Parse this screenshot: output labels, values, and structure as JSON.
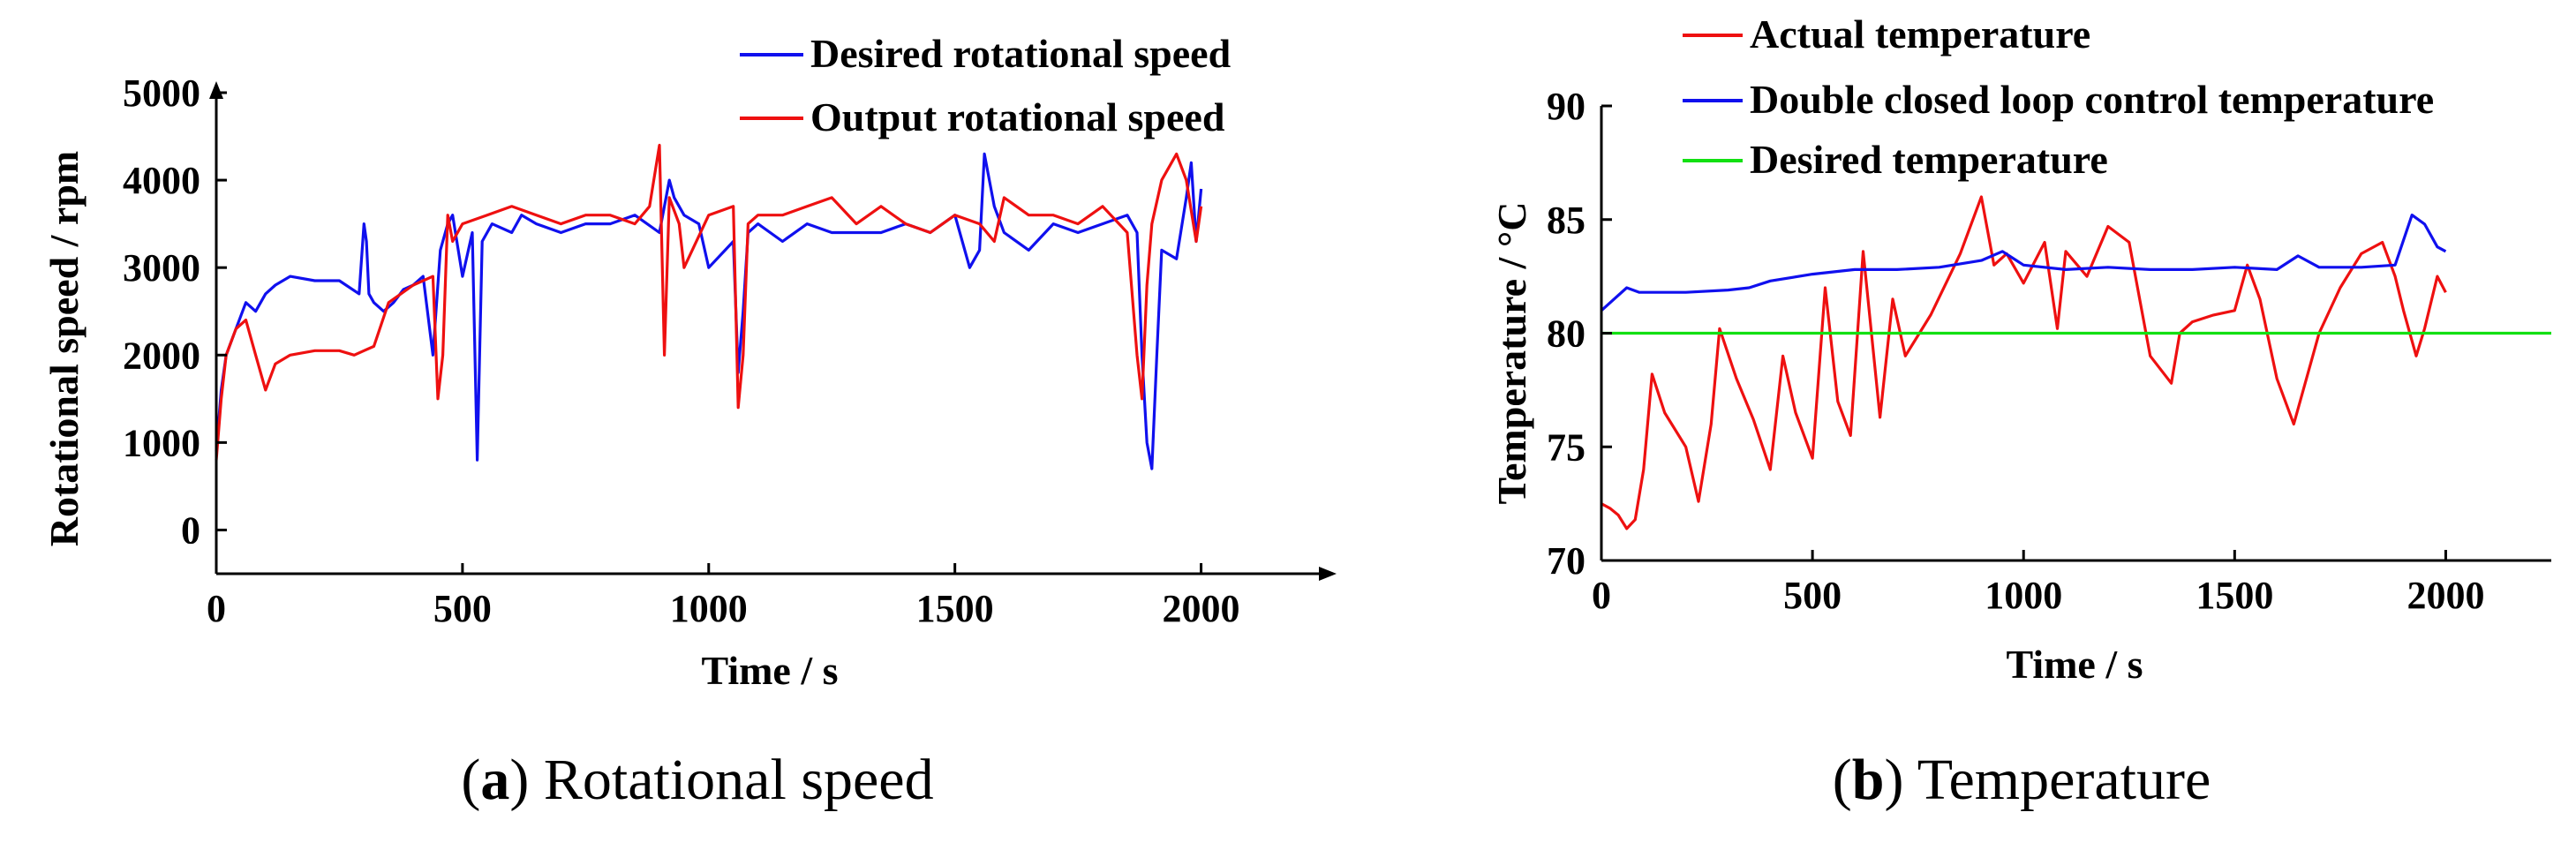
{
  "chart_data": [
    {
      "type": "line",
      "caption_letter": "a",
      "caption_text": "Rotational speed",
      "xlabel": "Time / s",
      "ylabel": "Rotational speed / rpm",
      "xlim": [
        0,
        2250
      ],
      "ylim": [
        -500,
        5000
      ],
      "xticks": [
        0,
        500,
        1000,
        1500,
        2000
      ],
      "yticks": [
        0,
        1000,
        2000,
        3000,
        4000,
        5000
      ],
      "legend_position": "top-right",
      "series": [
        {
          "name": "Desired rotational speed",
          "color": "#1010ee",
          "x": [
            0,
            10,
            20,
            40,
            60,
            80,
            100,
            120,
            150,
            200,
            250,
            290,
            300,
            305,
            310,
            320,
            340,
            360,
            380,
            400,
            420,
            440,
            450,
            455,
            460,
            470,
            480,
            500,
            520,
            530,
            540,
            560,
            600,
            620,
            650,
            700,
            750,
            800,
            850,
            900,
            920,
            930,
            950,
            980,
            1000,
            1050,
            1060,
            1070,
            1080,
            1100,
            1150,
            1200,
            1250,
            1300,
            1350,
            1400,
            1450,
            1500,
            1530,
            1550,
            1560,
            1580,
            1600,
            1650,
            1700,
            1750,
            1800,
            1850,
            1870,
            1880,
            1890,
            1900,
            1910,
            1920,
            1950,
            1970,
            1980,
            1990,
            2000
          ],
          "values": [
            900,
            1600,
            2000,
            2300,
            2600,
            2500,
            2700,
            2800,
            2900,
            2850,
            2850,
            2700,
            3500,
            3300,
            2700,
            2600,
            2500,
            2600,
            2750,
            2800,
            2900,
            2000,
            2800,
            3200,
            3300,
            3500,
            3600,
            2900,
            3400,
            800,
            3300,
            3500,
            3400,
            3600,
            3500,
            3400,
            3500,
            3500,
            3600,
            3400,
            4000,
            3800,
            3600,
            3500,
            3000,
            3300,
            1800,
            2500,
            3400,
            3500,
            3300,
            3500,
            3400,
            3400,
            3400,
            3500,
            3400,
            3600,
            3000,
            3200,
            4300,
            3700,
            3400,
            3200,
            3500,
            3400,
            3500,
            3600,
            3400,
            2000,
            1000,
            700,
            2000,
            3200,
            3100,
            3800,
            4200,
            3300,
            3900
          ]
        },
        {
          "name": "Output rotational speed",
          "color": "#ee1010",
          "x": [
            0,
            10,
            20,
            40,
            60,
            80,
            100,
            120,
            150,
            200,
            250,
            280,
            300,
            320,
            350,
            400,
            440,
            450,
            460,
            470,
            480,
            500,
            550,
            600,
            650,
            700,
            750,
            800,
            850,
            880,
            900,
            910,
            920,
            940,
            950,
            1000,
            1050,
            1060,
            1070,
            1080,
            1100,
            1150,
            1200,
            1250,
            1300,
            1350,
            1400,
            1450,
            1500,
            1550,
            1580,
            1600,
            1650,
            1700,
            1750,
            1800,
            1850,
            1870,
            1880,
            1890,
            1900,
            1920,
            1950,
            1970,
            1990,
            2000
          ],
          "values": [
            800,
            1500,
            2000,
            2300,
            2400,
            2000,
            1600,
            1900,
            2000,
            2050,
            2050,
            2000,
            2050,
            2100,
            2600,
            2800,
            2900,
            1500,
            2000,
            3600,
            3300,
            3500,
            3600,
            3700,
            3600,
            3500,
            3600,
            3600,
            3500,
            3700,
            4400,
            2000,
            3800,
            3500,
            3000,
            3600,
            3700,
            1400,
            2000,
            3500,
            3600,
            3600,
            3700,
            3800,
            3500,
            3700,
            3500,
            3400,
            3600,
            3500,
            3300,
            3800,
            3600,
            3600,
            3500,
            3700,
            3400,
            2000,
            1500,
            2800,
            3500,
            4000,
            4300,
            4000,
            3300,
            3700
          ]
        }
      ]
    },
    {
      "type": "line",
      "caption_letter": "b",
      "caption_text": "Temperature",
      "xlabel": "Time / s",
      "ylabel": "Temperature / °C",
      "xlim": [
        0,
        2250
      ],
      "ylim": [
        70,
        90
      ],
      "xticks": [
        0,
        500,
        1000,
        1500,
        2000
      ],
      "yticks": [
        70,
        75,
        80,
        85,
        90
      ],
      "legend_position": "top",
      "series": [
        {
          "name": "Actual temperature",
          "color": "#ee1010",
          "x": [
            0,
            20,
            40,
            60,
            80,
            100,
            120,
            150,
            200,
            230,
            260,
            280,
            320,
            360,
            400,
            430,
            460,
            500,
            530,
            560,
            590,
            620,
            660,
            690,
            720,
            780,
            850,
            900,
            930,
            960,
            1000,
            1050,
            1080,
            1100,
            1150,
            1200,
            1250,
            1300,
            1350,
            1370,
            1400,
            1450,
            1500,
            1530,
            1560,
            1600,
            1640,
            1700,
            1750,
            1800,
            1850,
            1880,
            1900,
            1930,
            1950,
            1980,
            2000
          ],
          "values": [
            72.5,
            72.3,
            72.0,
            71.4,
            71.8,
            74.0,
            78.2,
            76.5,
            75.0,
            72.6,
            76.0,
            80.2,
            78.0,
            76.2,
            74.0,
            79.0,
            76.5,
            74.5,
            82.0,
            77.0,
            75.5,
            83.6,
            76.3,
            81.5,
            79.0,
            80.8,
            83.5,
            86.0,
            83.0,
            83.5,
            82.2,
            84.0,
            80.2,
            83.6,
            82.5,
            84.7,
            84.0,
            79.0,
            77.8,
            80.0,
            80.5,
            80.8,
            81.0,
            83.0,
            81.5,
            78.0,
            76.0,
            80.0,
            82.0,
            83.5,
            84.0,
            82.5,
            81.0,
            79.0,
            80.2,
            82.5,
            81.8
          ]
        },
        {
          "name": "Double closed loop control temperature",
          "color": "#1010ee",
          "x": [
            0,
            30,
            60,
            90,
            150,
            200,
            300,
            350,
            400,
            500,
            600,
            700,
            800,
            900,
            950,
            1000,
            1100,
            1200,
            1300,
            1400,
            1500,
            1600,
            1650,
            1700,
            1800,
            1880,
            1920,
            1950,
            1980,
            2000
          ],
          "values": [
            81.0,
            81.5,
            82.0,
            81.8,
            81.8,
            81.8,
            81.9,
            82.0,
            82.3,
            82.6,
            82.8,
            82.8,
            82.9,
            83.2,
            83.6,
            83.0,
            82.8,
            82.9,
            82.8,
            82.8,
            82.9,
            82.8,
            83.4,
            82.9,
            82.9,
            83.0,
            85.2,
            84.8,
            83.8,
            83.6
          ]
        },
        {
          "name": "Desired temperature",
          "color": "#12e012",
          "x": [
            0,
            2250
          ],
          "values": [
            80,
            80
          ]
        }
      ]
    }
  ]
}
